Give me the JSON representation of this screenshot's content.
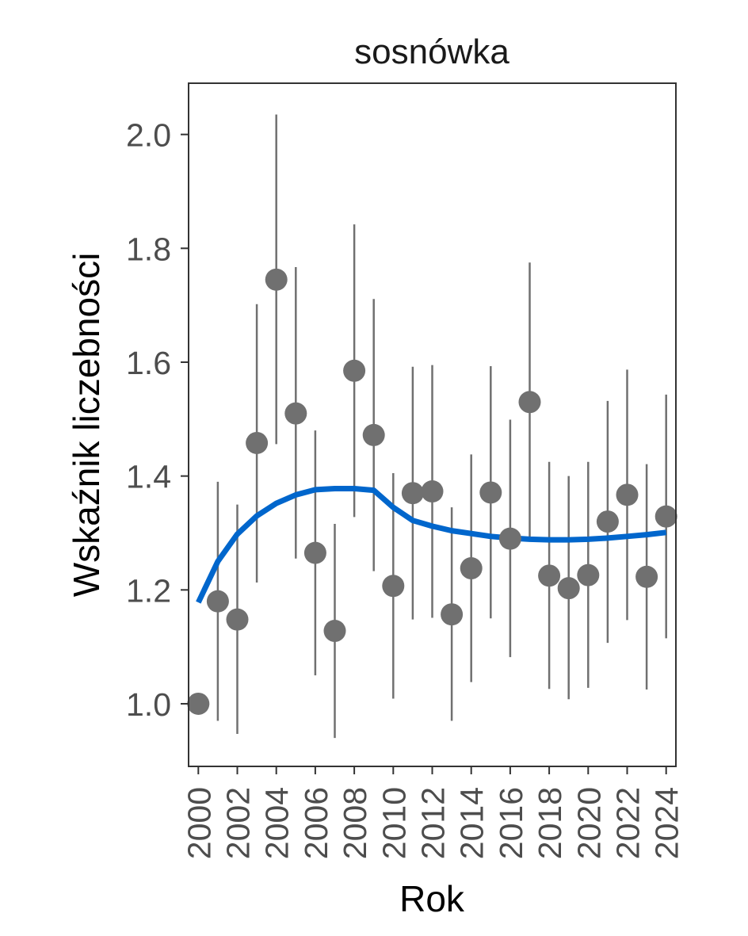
{
  "chart_data": {
    "type": "scatter",
    "title": "sosnówka",
    "xlabel": "Rok",
    "ylabel": "Wskaźnik liczebności",
    "xlim": [
      1999.5,
      2024.5
    ],
    "ylim": [
      0.89,
      2.09
    ],
    "x_ticks": [
      "2000",
      "2002",
      "2004",
      "2006",
      "2008",
      "2010",
      "2012",
      "2014",
      "2016",
      "2018",
      "2020",
      "2022",
      "2024"
    ],
    "y_ticks": [
      "1.0",
      "1.2",
      "1.4",
      "1.6",
      "1.8",
      "2.0"
    ],
    "grid": false,
    "series": [
      {
        "kind": "points_with_errorbars",
        "color": "#707070",
        "points": [
          {
            "x": 2000,
            "y": 1.0,
            "lo": 1.0,
            "hi": 1.0
          },
          {
            "x": 2001,
            "y": 1.18,
            "lo": 0.97,
            "hi": 1.39
          },
          {
            "x": 2002,
            "y": 1.148,
            "lo": 0.947,
            "hi": 1.35
          },
          {
            "x": 2003,
            "y": 1.458,
            "lo": 1.213,
            "hi": 1.702
          },
          {
            "x": 2004,
            "y": 1.745,
            "lo": 1.456,
            "hi": 2.035
          },
          {
            "x": 2005,
            "y": 1.51,
            "lo": 1.255,
            "hi": 1.767
          },
          {
            "x": 2006,
            "y": 1.265,
            "lo": 1.05,
            "hi": 1.48
          },
          {
            "x": 2007,
            "y": 1.128,
            "lo": 0.94,
            "hi": 1.316
          },
          {
            "x": 2008,
            "y": 1.585,
            "lo": 1.328,
            "hi": 1.842
          },
          {
            "x": 2009,
            "y": 1.472,
            "lo": 1.233,
            "hi": 1.711
          },
          {
            "x": 2010,
            "y": 1.207,
            "lo": 1.009,
            "hi": 1.405
          },
          {
            "x": 2011,
            "y": 1.37,
            "lo": 1.148,
            "hi": 1.592
          },
          {
            "x": 2012,
            "y": 1.373,
            "lo": 1.151,
            "hi": 1.595
          },
          {
            "x": 2013,
            "y": 1.157,
            "lo": 0.97,
            "hi": 1.345
          },
          {
            "x": 2014,
            "y": 1.238,
            "lo": 1.038,
            "hi": 1.438
          },
          {
            "x": 2015,
            "y": 1.371,
            "lo": 1.15,
            "hi": 1.593
          },
          {
            "x": 2016,
            "y": 1.29,
            "lo": 1.082,
            "hi": 1.499
          },
          {
            "x": 2017,
            "y": 1.53,
            "lo": 1.285,
            "hi": 1.775
          },
          {
            "x": 2018,
            "y": 1.225,
            "lo": 1.026,
            "hi": 1.425
          },
          {
            "x": 2019,
            "y": 1.203,
            "lo": 1.008,
            "hi": 1.4
          },
          {
            "x": 2020,
            "y": 1.226,
            "lo": 1.028,
            "hi": 1.425
          },
          {
            "x": 2021,
            "y": 1.32,
            "lo": 1.107,
            "hi": 1.532
          },
          {
            "x": 2022,
            "y": 1.367,
            "lo": 1.147,
            "hi": 1.587
          },
          {
            "x": 2023,
            "y": 1.223,
            "lo": 1.025,
            "hi": 1.421
          },
          {
            "x": 2024,
            "y": 1.329,
            "lo": 1.115,
            "hi": 1.543
          }
        ]
      },
      {
        "kind": "trend_line",
        "color": "#0066cc",
        "x": [
          2000,
          2001,
          2002,
          2003,
          2004,
          2005,
          2006,
          2007,
          2008,
          2009,
          2010,
          2011,
          2012,
          2013,
          2014,
          2015,
          2016,
          2017,
          2018,
          2019,
          2020,
          2021,
          2022,
          2023,
          2024
        ],
        "y": [
          1.178,
          1.25,
          1.298,
          1.33,
          1.352,
          1.367,
          1.376,
          1.378,
          1.378,
          1.375,
          1.345,
          1.322,
          1.312,
          1.304,
          1.299,
          1.294,
          1.291,
          1.289,
          1.288,
          1.288,
          1.289,
          1.291,
          1.294,
          1.297,
          1.301
        ]
      }
    ]
  }
}
